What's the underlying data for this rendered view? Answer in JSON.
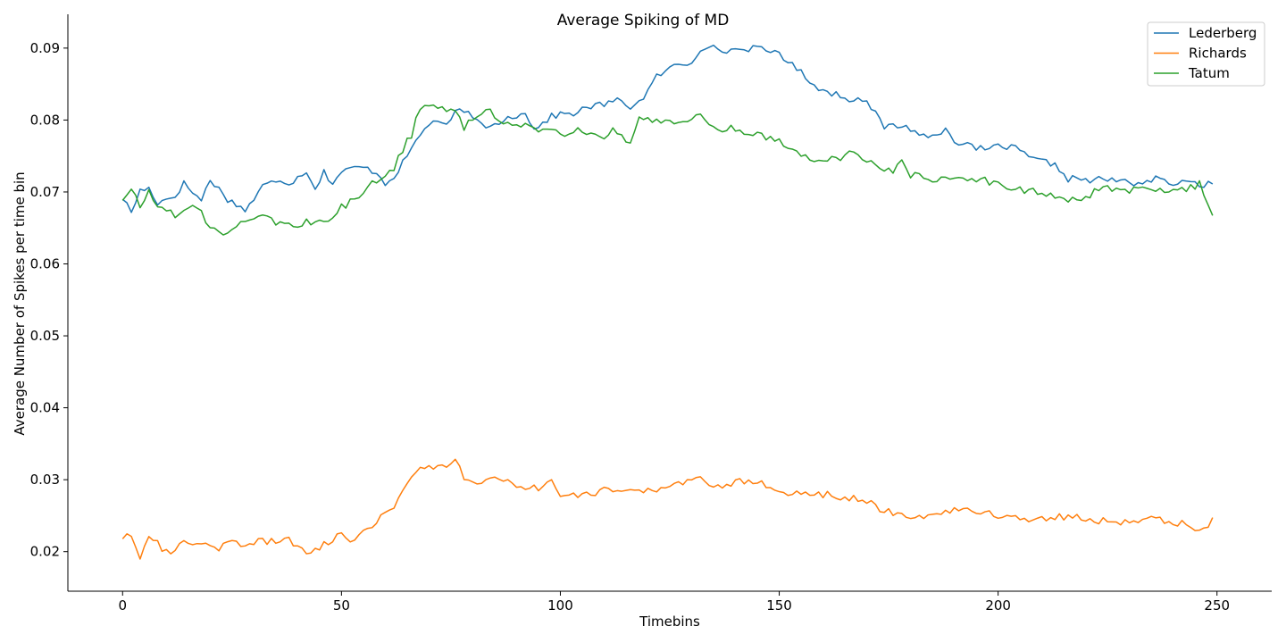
{
  "chart_data": {
    "type": "line",
    "title": "Average Spiking of MD",
    "xlabel": "Timebins",
    "ylabel": "Average Number of Spikes per time bin",
    "xlim": [
      -12.5,
      262.5
    ],
    "ylim": [
      0.0145,
      0.0947
    ],
    "xticks": [
      0,
      50,
      100,
      150,
      200,
      250
    ],
    "xtick_labels": [
      "0",
      "50",
      "100",
      "150",
      "200",
      "250"
    ],
    "yticks": [
      0.02,
      0.03,
      0.04,
      0.05,
      0.06,
      0.07,
      0.08,
      0.09
    ],
    "ytick_labels": [
      "0.02",
      "0.03",
      "0.04",
      "0.05",
      "0.06",
      "0.07",
      "0.08",
      "0.09"
    ],
    "grid": false,
    "legend_position": "top-right",
    "x": {
      "start": 0,
      "end": 249,
      "step": 1
    },
    "series": [
      {
        "name": "Lederberg",
        "color": "#1f77b4",
        "knots": [
          [
            0,
            0.0692
          ],
          [
            2,
            0.0672
          ],
          [
            4,
            0.0702
          ],
          [
            6,
            0.0705
          ],
          [
            8,
            0.0685
          ],
          [
            12,
            0.0695
          ],
          [
            14,
            0.0712
          ],
          [
            18,
            0.0688
          ],
          [
            20,
            0.0718
          ],
          [
            24,
            0.069
          ],
          [
            28,
            0.0675
          ],
          [
            30,
            0.069
          ],
          [
            32,
            0.0708
          ],
          [
            36,
            0.0718
          ],
          [
            38,
            0.0712
          ],
          [
            40,
            0.072
          ],
          [
            42,
            0.073
          ],
          [
            44,
            0.0705
          ],
          [
            46,
            0.0728
          ],
          [
            48,
            0.0712
          ],
          [
            50,
            0.0728
          ],
          [
            54,
            0.0735
          ],
          [
            58,
            0.0728
          ],
          [
            60,
            0.0712
          ],
          [
            62,
            0.0722
          ],
          [
            64,
            0.074
          ],
          [
            66,
            0.076
          ],
          [
            68,
            0.078
          ],
          [
            70,
            0.0795
          ],
          [
            72,
            0.08
          ],
          [
            74,
            0.079
          ],
          [
            76,
            0.081
          ],
          [
            78,
            0.0815
          ],
          [
            80,
            0.08
          ],
          [
            84,
            0.079
          ],
          [
            88,
            0.0805
          ],
          [
            92,
            0.0808
          ],
          [
            94,
            0.079
          ],
          [
            96,
            0.0795
          ],
          [
            98,
            0.0805
          ],
          [
            100,
            0.0808
          ],
          [
            104,
            0.081
          ],
          [
            106,
            0.0818
          ],
          [
            110,
            0.0822
          ],
          [
            114,
            0.0828
          ],
          [
            116,
            0.0818
          ],
          [
            118,
            0.0825
          ],
          [
            120,
            0.084
          ],
          [
            122,
            0.086
          ],
          [
            124,
            0.0868
          ],
          [
            126,
            0.0875
          ],
          [
            128,
            0.0878
          ],
          [
            130,
            0.088
          ],
          [
            132,
            0.09
          ],
          [
            134,
            0.0905
          ],
          [
            136,
            0.0895
          ],
          [
            140,
            0.0898
          ],
          [
            144,
            0.09
          ],
          [
            148,
            0.0895
          ],
          [
            150,
            0.0895
          ],
          [
            152,
            0.088
          ],
          [
            154,
            0.0872
          ],
          [
            156,
            0.086
          ],
          [
            158,
            0.085
          ],
          [
            160,
            0.084
          ],
          [
            164,
            0.0835
          ],
          [
            166,
            0.0825
          ],
          [
            168,
            0.0835
          ],
          [
            170,
            0.0825
          ],
          [
            172,
            0.0808
          ],
          [
            174,
            0.079
          ],
          [
            176,
            0.0792
          ],
          [
            178,
            0.0792
          ],
          [
            180,
            0.0788
          ],
          [
            184,
            0.0775
          ],
          [
            186,
            0.078
          ],
          [
            188,
            0.079
          ],
          [
            190,
            0.0772
          ],
          [
            194,
            0.0762
          ],
          [
            198,
            0.0758
          ],
          [
            200,
            0.0765
          ],
          [
            204,
            0.076
          ],
          [
            208,
            0.0745
          ],
          [
            212,
            0.074
          ],
          [
            214,
            0.0732
          ],
          [
            216,
            0.0718
          ],
          [
            218,
            0.072
          ],
          [
            220,
            0.0715
          ],
          [
            224,
            0.0718
          ],
          [
            228,
            0.0715
          ],
          [
            232,
            0.0712
          ],
          [
            236,
            0.0718
          ],
          [
            240,
            0.0712
          ],
          [
            244,
            0.0712
          ],
          [
            249,
            0.071
          ]
        ]
      },
      {
        "name": "Richards",
        "color": "#ff7f0e",
        "knots": [
          [
            0,
            0.022
          ],
          [
            2,
            0.0225
          ],
          [
            4,
            0.0195
          ],
          [
            6,
            0.0225
          ],
          [
            8,
            0.0212
          ],
          [
            10,
            0.0198
          ],
          [
            12,
            0.0205
          ],
          [
            14,
            0.0212
          ],
          [
            18,
            0.021
          ],
          [
            20,
            0.0205
          ],
          [
            22,
            0.02
          ],
          [
            24,
            0.0215
          ],
          [
            28,
            0.021
          ],
          [
            30,
            0.0212
          ],
          [
            34,
            0.0215
          ],
          [
            38,
            0.0215
          ],
          [
            42,
            0.0198
          ],
          [
            44,
            0.0205
          ],
          [
            46,
            0.021
          ],
          [
            48,
            0.0215
          ],
          [
            50,
            0.0225
          ],
          [
            52,
            0.0215
          ],
          [
            54,
            0.0225
          ],
          [
            56,
            0.0235
          ],
          [
            58,
            0.0242
          ],
          [
            60,
            0.025
          ],
          [
            62,
            0.0265
          ],
          [
            64,
            0.0285
          ],
          [
            66,
            0.03
          ],
          [
            68,
            0.0315
          ],
          [
            70,
            0.0318
          ],
          [
            72,
            0.032
          ],
          [
            74,
            0.0315
          ],
          [
            76,
            0.0325
          ],
          [
            78,
            0.0305
          ],
          [
            80,
            0.0295
          ],
          [
            82,
            0.03
          ],
          [
            84,
            0.03
          ],
          [
            86,
            0.0298
          ],
          [
            88,
            0.0295
          ],
          [
            92,
            0.029
          ],
          [
            96,
            0.0288
          ],
          [
            98,
            0.0295
          ],
          [
            100,
            0.028
          ],
          [
            102,
            0.028
          ],
          [
            106,
            0.028
          ],
          [
            110,
            0.0285
          ],
          [
            114,
            0.0288
          ],
          [
            118,
            0.0285
          ],
          [
            122,
            0.0285
          ],
          [
            126,
            0.029
          ],
          [
            130,
            0.03
          ],
          [
            132,
            0.0305
          ],
          [
            134,
            0.0295
          ],
          [
            136,
            0.029
          ],
          [
            140,
            0.0295
          ],
          [
            144,
            0.03
          ],
          [
            146,
            0.0295
          ],
          [
            150,
            0.0282
          ],
          [
            152,
            0.0278
          ],
          [
            154,
            0.0285
          ],
          [
            158,
            0.0282
          ],
          [
            162,
            0.0278
          ],
          [
            166,
            0.0275
          ],
          [
            170,
            0.0268
          ],
          [
            174,
            0.0258
          ],
          [
            178,
            0.0252
          ],
          [
            182,
            0.025
          ],
          [
            186,
            0.0252
          ],
          [
            190,
            0.0258
          ],
          [
            194,
            0.0258
          ],
          [
            196,
            0.0255
          ],
          [
            200,
            0.025
          ],
          [
            204,
            0.0248
          ],
          [
            208,
            0.0245
          ],
          [
            212,
            0.0248
          ],
          [
            216,
            0.025
          ],
          [
            220,
            0.0245
          ],
          [
            224,
            0.0242
          ],
          [
            228,
            0.024
          ],
          [
            232,
            0.0245
          ],
          [
            236,
            0.0245
          ],
          [
            240,
            0.0242
          ],
          [
            244,
            0.0235
          ],
          [
            246,
            0.0225
          ],
          [
            248,
            0.0238
          ],
          [
            249,
            0.0248
          ]
        ]
      },
      {
        "name": "Tatum",
        "color": "#2ca02c",
        "knots": [
          [
            0,
            0.069
          ],
          [
            2,
            0.07
          ],
          [
            4,
            0.068
          ],
          [
            6,
            0.0702
          ],
          [
            8,
            0.068
          ],
          [
            10,
            0.0675
          ],
          [
            12,
            0.0668
          ],
          [
            14,
            0.0672
          ],
          [
            16,
            0.0682
          ],
          [
            18,
            0.0672
          ],
          [
            20,
            0.0652
          ],
          [
            24,
            0.064
          ],
          [
            26,
            0.0655
          ],
          [
            28,
            0.066
          ],
          [
            30,
            0.0665
          ],
          [
            32,
            0.0672
          ],
          [
            34,
            0.066
          ],
          [
            38,
            0.0655
          ],
          [
            40,
            0.065
          ],
          [
            42,
            0.066
          ],
          [
            46,
            0.0655
          ],
          [
            48,
            0.0665
          ],
          [
            50,
            0.068
          ],
          [
            52,
            0.0685
          ],
          [
            54,
            0.0695
          ],
          [
            56,
            0.0705
          ],
          [
            58,
            0.0715
          ],
          [
            60,
            0.072
          ],
          [
            62,
            0.0735
          ],
          [
            64,
            0.076
          ],
          [
            66,
            0.078
          ],
          [
            68,
            0.082
          ],
          [
            70,
            0.0825
          ],
          [
            72,
            0.0815
          ],
          [
            76,
            0.081
          ],
          [
            78,
            0.079
          ],
          [
            80,
            0.08
          ],
          [
            82,
            0.0808
          ],
          [
            84,
            0.0812
          ],
          [
            86,
            0.08
          ],
          [
            90,
            0.0795
          ],
          [
            94,
            0.079
          ],
          [
            96,
            0.0785
          ],
          [
            100,
            0.078
          ],
          [
            104,
            0.0788
          ],
          [
            108,
            0.0782
          ],
          [
            110,
            0.0772
          ],
          [
            112,
            0.0785
          ],
          [
            116,
            0.0765
          ],
          [
            118,
            0.0805
          ],
          [
            120,
            0.08
          ],
          [
            124,
            0.0798
          ],
          [
            128,
            0.08
          ],
          [
            130,
            0.08
          ],
          [
            132,
            0.0805
          ],
          [
            136,
            0.0785
          ],
          [
            138,
            0.079
          ],
          [
            142,
            0.0785
          ],
          [
            146,
            0.078
          ],
          [
            150,
            0.077
          ],
          [
            152,
            0.076
          ],
          [
            156,
            0.075
          ],
          [
            160,
            0.0745
          ],
          [
            164,
            0.0748
          ],
          [
            166,
            0.0755
          ],
          [
            170,
            0.0745
          ],
          [
            172,
            0.0738
          ],
          [
            176,
            0.0728
          ],
          [
            178,
            0.074
          ],
          [
            180,
            0.0725
          ],
          [
            184,
            0.0718
          ],
          [
            186,
            0.0712
          ],
          [
            188,
            0.0725
          ],
          [
            192,
            0.0715
          ],
          [
            196,
            0.0718
          ],
          [
            200,
            0.0712
          ],
          [
            204,
            0.0705
          ],
          [
            208,
            0.07
          ],
          [
            212,
            0.0695
          ],
          [
            216,
            0.069
          ],
          [
            220,
            0.0692
          ],
          [
            224,
            0.0708
          ],
          [
            228,
            0.07
          ],
          [
            232,
            0.0705
          ],
          [
            236,
            0.0702
          ],
          [
            240,
            0.0698
          ],
          [
            244,
            0.0705
          ],
          [
            246,
            0.0712
          ],
          [
            249,
            0.067
          ]
        ]
      }
    ]
  }
}
